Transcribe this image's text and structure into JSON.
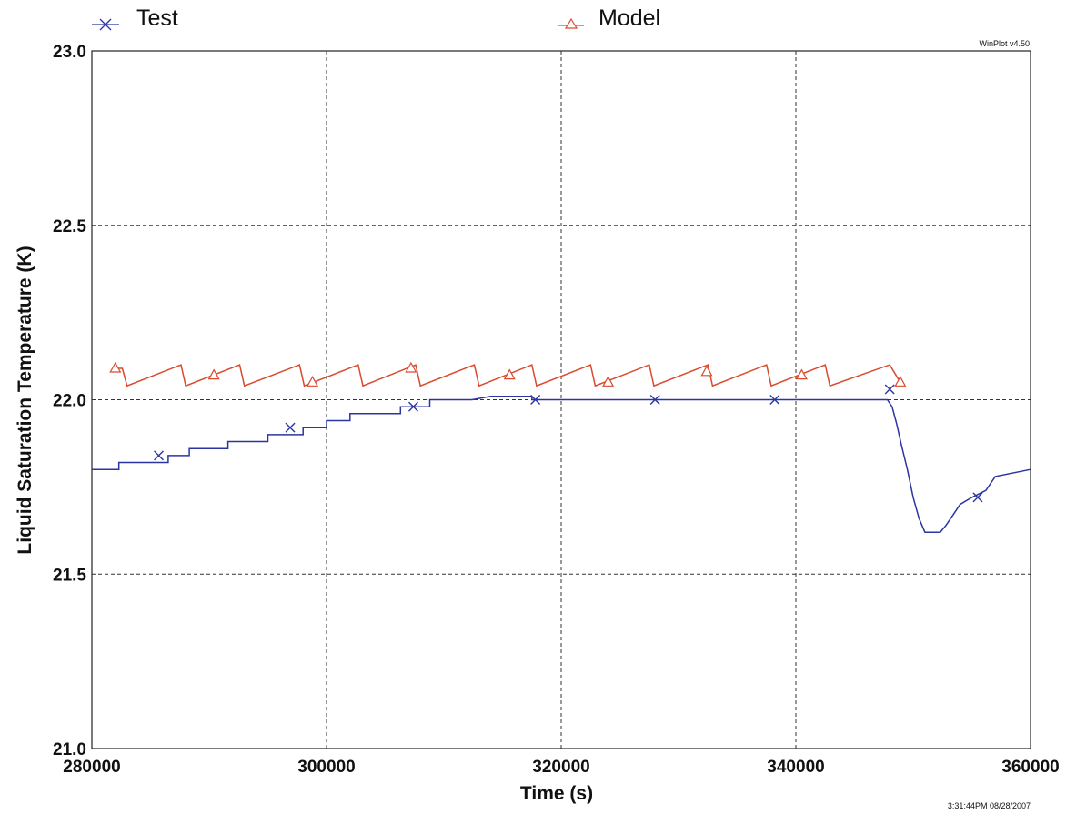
{
  "chart_data": {
    "type": "line",
    "xlabel": "Time (s)",
    "ylabel": "Liquid Saturation Temperature (K)",
    "xlim": [
      280000,
      360000
    ],
    "ylim": [
      21.0,
      23.0
    ],
    "x_ticks": [
      280000,
      300000,
      320000,
      340000,
      360000
    ],
    "y_ticks": [
      21.0,
      21.5,
      22.0,
      22.5,
      23.0
    ],
    "x_tick_labels": [
      "280000",
      "300000",
      "320000",
      "340000",
      "360000"
    ],
    "y_tick_labels": [
      "21.0",
      "21.5",
      "22.0",
      "22.5",
      "23.0"
    ],
    "grid": true,
    "legend_position": "top",
    "watermark": "WinPlot v4.50",
    "timestamp": "3:31:44PM 08/28/2007",
    "series": [
      {
        "name": "Test",
        "color": "#2b35a0",
        "marker": "x",
        "marker_points": [
          [
            285700,
            21.84
          ],
          [
            296900,
            21.92
          ],
          [
            307400,
            21.98
          ],
          [
            317800,
            22.0
          ],
          [
            328000,
            22.0
          ],
          [
            338200,
            22.0
          ],
          [
            348000,
            22.03
          ],
          [
            355500,
            21.72
          ]
        ],
        "points": [
          [
            280000,
            21.8
          ],
          [
            282300,
            21.8
          ],
          [
            282300,
            21.82
          ],
          [
            286500,
            21.82
          ],
          [
            286500,
            21.84
          ],
          [
            288300,
            21.84
          ],
          [
            288300,
            21.86
          ],
          [
            291600,
            21.86
          ],
          [
            291600,
            21.88
          ],
          [
            295000,
            21.88
          ],
          [
            295000,
            21.9
          ],
          [
            298000,
            21.9
          ],
          [
            298000,
            21.92
          ],
          [
            300000,
            21.92
          ],
          [
            300000,
            21.94
          ],
          [
            302000,
            21.94
          ],
          [
            302000,
            21.96
          ],
          [
            306300,
            21.96
          ],
          [
            306300,
            21.98
          ],
          [
            308800,
            21.98
          ],
          [
            308800,
            22.0
          ],
          [
            312400,
            22.0
          ],
          [
            312400,
            22.0
          ],
          [
            314000,
            22.01
          ],
          [
            317500,
            22.01
          ],
          [
            317500,
            22.0
          ],
          [
            320000,
            22.0
          ],
          [
            323000,
            22.0
          ],
          [
            325000,
            22.0
          ],
          [
            330000,
            22.0
          ],
          [
            335000,
            22.0
          ],
          [
            340000,
            22.0
          ],
          [
            345000,
            22.0
          ],
          [
            347800,
            22.0
          ],
          [
            348200,
            21.98
          ],
          [
            348600,
            21.93
          ],
          [
            349000,
            21.87
          ],
          [
            349500,
            21.8
          ],
          [
            350000,
            21.72
          ],
          [
            350500,
            21.66
          ],
          [
            351000,
            21.62
          ],
          [
            352300,
            21.62
          ],
          [
            352800,
            21.64
          ],
          [
            353400,
            21.67
          ],
          [
            354000,
            21.7
          ],
          [
            355000,
            21.72
          ],
          [
            356200,
            21.74
          ],
          [
            356600,
            21.76
          ],
          [
            357000,
            21.78
          ],
          [
            360000,
            21.8
          ]
        ]
      },
      {
        "name": "Model",
        "color": "#d94a2e",
        "marker": "triangle",
        "marker_points": [
          [
            282000,
            22.09
          ],
          [
            290400,
            22.07
          ],
          [
            298800,
            22.05
          ],
          [
            307200,
            22.09
          ],
          [
            315600,
            22.07
          ],
          [
            324000,
            22.05
          ],
          [
            332400,
            22.08
          ],
          [
            340500,
            22.07
          ],
          [
            348900,
            22.05
          ]
        ],
        "points": [
          [
            282000,
            22.09
          ],
          [
            282600,
            22.09
          ],
          [
            283000,
            22.04
          ],
          [
            287600,
            22.1
          ],
          [
            288000,
            22.04
          ],
          [
            292600,
            22.1
          ],
          [
            293000,
            22.04
          ],
          [
            297700,
            22.1
          ],
          [
            298100,
            22.04
          ],
          [
            302700,
            22.1
          ],
          [
            303100,
            22.04
          ],
          [
            307600,
            22.1
          ],
          [
            308000,
            22.04
          ],
          [
            312600,
            22.1
          ],
          [
            313000,
            22.04
          ],
          [
            317500,
            22.1
          ],
          [
            317900,
            22.04
          ],
          [
            322500,
            22.1
          ],
          [
            322900,
            22.04
          ],
          [
            327500,
            22.1
          ],
          [
            327900,
            22.04
          ],
          [
            332500,
            22.1
          ],
          [
            332900,
            22.04
          ],
          [
            337500,
            22.1
          ],
          [
            337900,
            22.04
          ],
          [
            342500,
            22.1
          ],
          [
            342900,
            22.04
          ],
          [
            348000,
            22.1
          ],
          [
            348900,
            22.05
          ]
        ]
      }
    ]
  }
}
